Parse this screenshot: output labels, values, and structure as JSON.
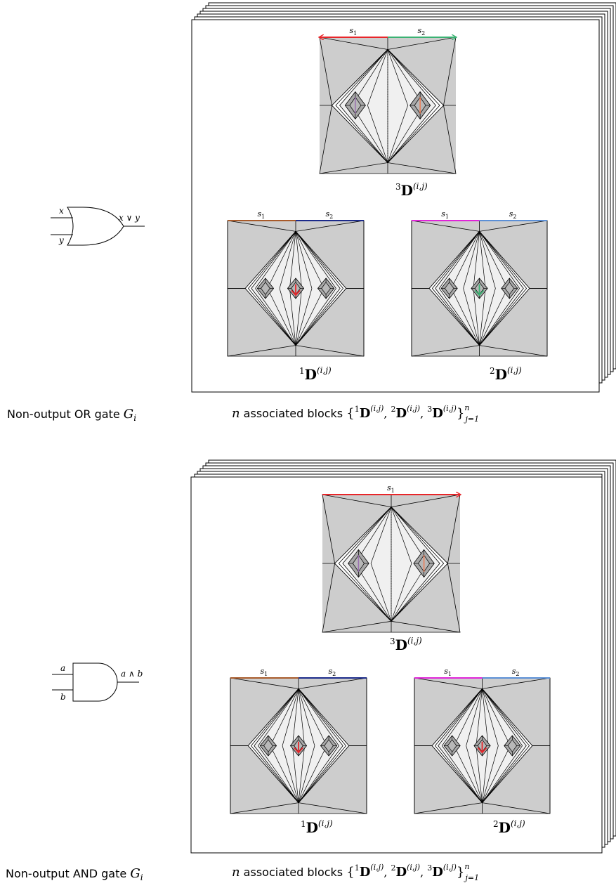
{
  "or_panel": {
    "gate": {
      "type": "OR",
      "input_a": "x",
      "input_b": "y",
      "output": "x ∨ y"
    },
    "caption_prefix": "Non-output OR gate ",
    "caption_var": "G",
    "caption_sub": "i",
    "top_block": {
      "segments": [
        {
          "label": "s1",
          "color": "#e8262a",
          "arrow": "left"
        },
        {
          "label": "s2",
          "color": "#3bb273",
          "arrow": "right"
        }
      ],
      "center_color": "#9a6fb0",
      "right_color": "#f07b52",
      "tag_pre": "3",
      "tag_sup": "(i,j)"
    },
    "bottom_left_block": {
      "segments": [
        {
          "label": "s1",
          "color": "#a85a2a",
          "arrow": "none"
        },
        {
          "label": "s2",
          "color": "#1b2a8a",
          "arrow": "none"
        }
      ],
      "mid_arrow_color": "#e8262a",
      "tag_pre": "1",
      "tag_sup": "(i,j)"
    },
    "bottom_right_block": {
      "segments": [
        {
          "label": "s1",
          "color": "#e024d8",
          "arrow": "none"
        },
        {
          "label": "s2",
          "color": "#5b8fd6",
          "arrow": "none"
        }
      ],
      "mid_arrow_color": "#3bb273",
      "tag_pre": "2",
      "tag_sup": "(i,j)"
    },
    "blocks_caption_var": "n",
    "blocks_caption_text": " associated blocks ",
    "blocks_set_open": "{",
    "blocks_set_items": [
      "1",
      "2",
      "3"
    ],
    "blocks_set_close": "}",
    "blocks_set_sup": "n",
    "blocks_set_sub": "j=1"
  },
  "and_panel": {
    "gate": {
      "type": "AND",
      "input_a": "a",
      "input_b": "b",
      "output": "a ∧ b"
    },
    "caption_prefix": "Non-output AND gate ",
    "caption_var": "G",
    "caption_sub": "i",
    "top_block": {
      "segments": [
        {
          "label": "s1",
          "color": "#e8262a",
          "arrow": "right"
        }
      ],
      "center_color": "#9a6fb0",
      "right_color": "#f07b52",
      "tag_pre": "3",
      "tag_sup": "(i,j)"
    },
    "bottom_left_block": {
      "segments": [
        {
          "label": "s1",
          "color": "#a85a2a",
          "arrow": "none"
        },
        {
          "label": "s2",
          "color": "#1b2a8a",
          "arrow": "none"
        }
      ],
      "mid_arrow_color": "#e8262a",
      "tag_pre": "1",
      "tag_sup": "(i,j)"
    },
    "bottom_right_block": {
      "segments": [
        {
          "label": "s1",
          "color": "#e024d8",
          "arrow": "none"
        },
        {
          "label": "s2",
          "color": "#5b8fd6",
          "arrow": "none"
        }
      ],
      "mid_arrow_color": "#e8262a",
      "tag_pre": "2",
      "tag_sup": "(i,j)"
    },
    "blocks_caption_var": "n",
    "blocks_caption_text": " associated blocks ",
    "blocks_set_open": "{",
    "blocks_set_items": [
      "1",
      "2",
      "3"
    ],
    "blocks_set_close": "}",
    "blocks_set_sup": "n",
    "blocks_set_sub": "j=1"
  },
  "block_symbol": "D",
  "colors": {
    "fill_gray": "#cdcdcd",
    "fill_light": "#f0f0f0",
    "stroke": "#000000"
  }
}
